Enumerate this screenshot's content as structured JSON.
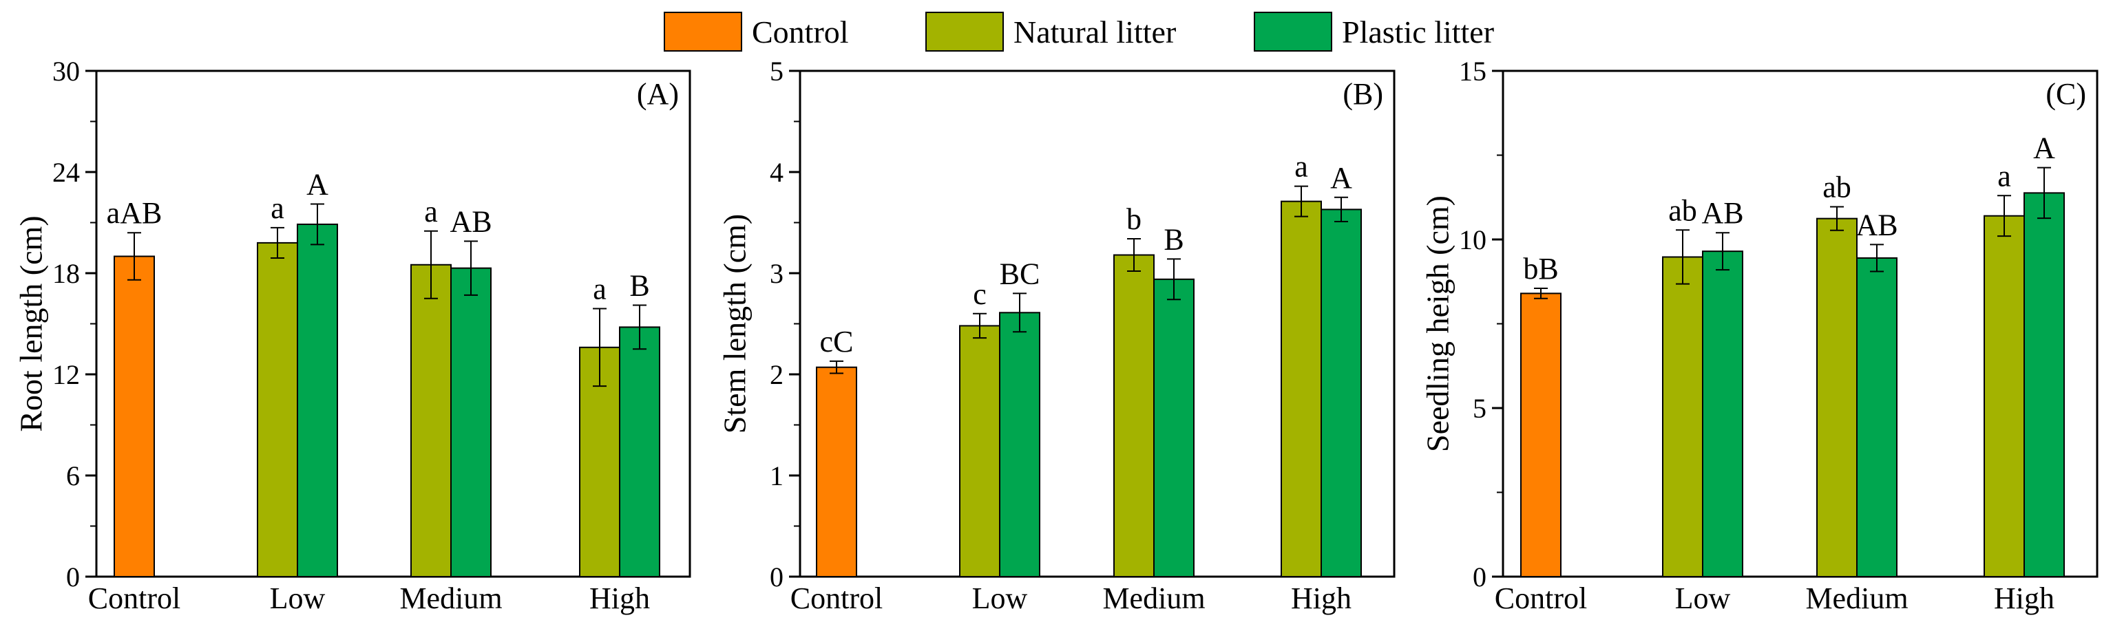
{
  "legend": [
    {
      "name": "Control",
      "color": "#ff8000"
    },
    {
      "name": "Natural litter",
      "color": "#a3b300"
    },
    {
      "name": "Plastic litter",
      "color": "#00a64f"
    }
  ],
  "chart_data": [
    {
      "type": "bar",
      "panel_label": "(A)",
      "ylabel": "Root length (cm)",
      "ylim": [
        0,
        30
      ],
      "yticks": [
        0,
        6,
        12,
        18,
        24,
        30
      ],
      "categories": [
        "Control",
        "Low",
        "Medium",
        "High"
      ],
      "series": [
        {
          "name": "Control",
          "values": [
            19.0,
            null,
            null,
            null
          ],
          "errors": [
            1.4,
            null,
            null,
            null
          ],
          "letters": [
            "aAB",
            "",
            "",
            ""
          ]
        },
        {
          "name": "Natural litter",
          "values": [
            null,
            19.8,
            18.5,
            13.6
          ],
          "errors": [
            null,
            0.9,
            2.0,
            2.3
          ],
          "letters": [
            "",
            "a",
            "a",
            "a"
          ]
        },
        {
          "name": "Plastic litter",
          "values": [
            null,
            20.9,
            18.3,
            14.8
          ],
          "errors": [
            null,
            1.2,
            1.6,
            1.3
          ],
          "letters": [
            "",
            "A",
            "AB",
            "B"
          ]
        }
      ]
    },
    {
      "type": "bar",
      "panel_label": "(B)",
      "ylabel": "Stem length (cm)",
      "ylim": [
        0,
        5
      ],
      "yticks": [
        0,
        1,
        2,
        3,
        4,
        5
      ],
      "categories": [
        "Control",
        "Low",
        "Medium",
        "High"
      ],
      "series": [
        {
          "name": "Control",
          "values": [
            2.07,
            null,
            null,
            null
          ],
          "errors": [
            0.06,
            null,
            null,
            null
          ],
          "letters": [
            "cC",
            "",
            "",
            ""
          ]
        },
        {
          "name": "Natural litter",
          "values": [
            null,
            2.48,
            3.18,
            3.71
          ],
          "errors": [
            null,
            0.12,
            0.16,
            0.15
          ],
          "letters": [
            "",
            "c",
            "b",
            "a"
          ]
        },
        {
          "name": "Plastic litter",
          "values": [
            null,
            2.61,
            2.94,
            3.63
          ],
          "errors": [
            null,
            0.19,
            0.2,
            0.12
          ],
          "letters": [
            "",
            "BC",
            "B",
            "A"
          ]
        }
      ]
    },
    {
      "type": "bar",
      "panel_label": "(C)",
      "ylabel": "Seedling heigh (cm)",
      "ylim": [
        0,
        15
      ],
      "yticks": [
        0,
        5,
        10,
        15
      ],
      "categories": [
        "Control",
        "Low",
        "Medium",
        "High"
      ],
      "series": [
        {
          "name": "Control",
          "values": [
            8.4,
            null,
            null,
            null
          ],
          "errors": [
            0.15,
            null,
            null,
            null
          ],
          "letters": [
            "bB",
            "",
            "",
            ""
          ]
        },
        {
          "name": "Natural litter",
          "values": [
            null,
            9.48,
            10.62,
            10.7
          ],
          "errors": [
            null,
            0.8,
            0.35,
            0.6
          ],
          "letters": [
            "",
            "ab",
            "ab",
            "a"
          ]
        },
        {
          "name": "Plastic litter",
          "values": [
            null,
            9.65,
            9.45,
            11.38
          ],
          "errors": [
            null,
            0.55,
            0.4,
            0.75
          ],
          "letters": [
            "",
            "AB",
            "AB",
            "A"
          ]
        }
      ]
    }
  ]
}
